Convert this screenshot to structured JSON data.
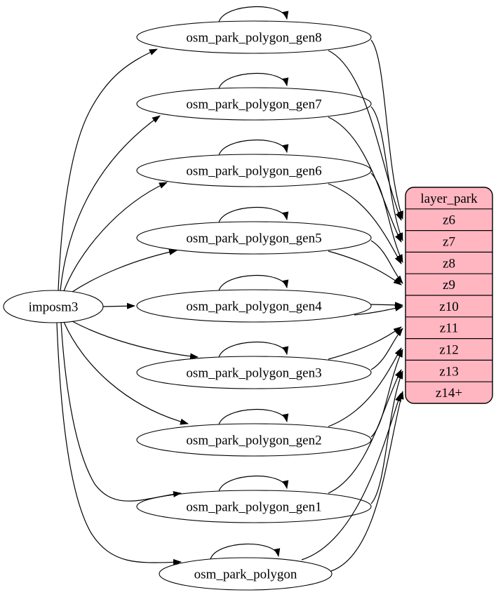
{
  "diagram": {
    "type": "graphviz-etl-diagram",
    "background_color": "#ffffff",
    "edge_color": "#000000",
    "source_node": {
      "id": "imposm3",
      "label": "imposm3",
      "fill": "#ffffff",
      "stroke": "#000000"
    },
    "table_nodes": [
      {
        "id": "osm_park_polygon_gen8",
        "label": "osm_park_polygon_gen8"
      },
      {
        "id": "osm_park_polygon_gen7",
        "label": "osm_park_polygon_gen7"
      },
      {
        "id": "osm_park_polygon_gen6",
        "label": "osm_park_polygon_gen6"
      },
      {
        "id": "osm_park_polygon_gen5",
        "label": "osm_park_polygon_gen5"
      },
      {
        "id": "osm_park_polygon_gen4",
        "label": "osm_park_polygon_gen4"
      },
      {
        "id": "osm_park_polygon_gen3",
        "label": "osm_park_polygon_gen3"
      },
      {
        "id": "osm_park_polygon_gen2",
        "label": "osm_park_polygon_gen2"
      },
      {
        "id": "osm_park_polygon_gen1",
        "label": "osm_park_polygon_gen1"
      },
      {
        "id": "osm_park_polygon",
        "label": "osm_park_polygon"
      }
    ],
    "layer_node": {
      "id": "layer_park",
      "title": "layer_park",
      "zoom_rows": [
        "z6",
        "z7",
        "z8",
        "z9",
        "z10",
        "z11",
        "z12",
        "z13",
        "z14+"
      ],
      "fill": "#ffb6c1",
      "stroke": "#000000"
    },
    "edges": {
      "from_source": [
        {
          "from": "imposm3",
          "to": "osm_park_polygon_gen8"
        },
        {
          "from": "imposm3",
          "to": "osm_park_polygon_gen7"
        },
        {
          "from": "imposm3",
          "to": "osm_park_polygon_gen6"
        },
        {
          "from": "imposm3",
          "to": "osm_park_polygon_gen5"
        },
        {
          "from": "imposm3",
          "to": "osm_park_polygon_gen4"
        },
        {
          "from": "imposm3",
          "to": "osm_park_polygon_gen3"
        },
        {
          "from": "imposm3",
          "to": "osm_park_polygon_gen2"
        },
        {
          "from": "imposm3",
          "to": "osm_park_polygon_gen1"
        },
        {
          "from": "imposm3",
          "to": "osm_park_polygon"
        }
      ],
      "self_loops": [
        "osm_park_polygon_gen8",
        "osm_park_polygon_gen7",
        "osm_park_polygon_gen6",
        "osm_park_polygon_gen5",
        "osm_park_polygon_gen4",
        "osm_park_polygon_gen3",
        "osm_park_polygon_gen2",
        "osm_park_polygon_gen1",
        "osm_park_polygon"
      ],
      "to_layer": [
        {
          "from": "osm_park_polygon_gen8",
          "to": "z6",
          "parallel_edges": 2
        },
        {
          "from": "osm_park_polygon_gen7",
          "to": "z7",
          "parallel_edges": 2
        },
        {
          "from": "osm_park_polygon_gen6",
          "to": "z8",
          "parallel_edges": 2
        },
        {
          "from": "osm_park_polygon_gen5",
          "to": "z9",
          "parallel_edges": 2
        },
        {
          "from": "osm_park_polygon_gen4",
          "to": "z10",
          "parallel_edges": 2
        },
        {
          "from": "osm_park_polygon_gen3",
          "to": "z11",
          "parallel_edges": 2
        },
        {
          "from": "osm_park_polygon_gen2",
          "to": "z12",
          "parallel_edges": 2
        },
        {
          "from": "osm_park_polygon_gen1",
          "to": "z13",
          "parallel_edges": 2
        },
        {
          "from": "osm_park_polygon",
          "to": "z14+",
          "parallel_edges": 2
        }
      ]
    }
  }
}
